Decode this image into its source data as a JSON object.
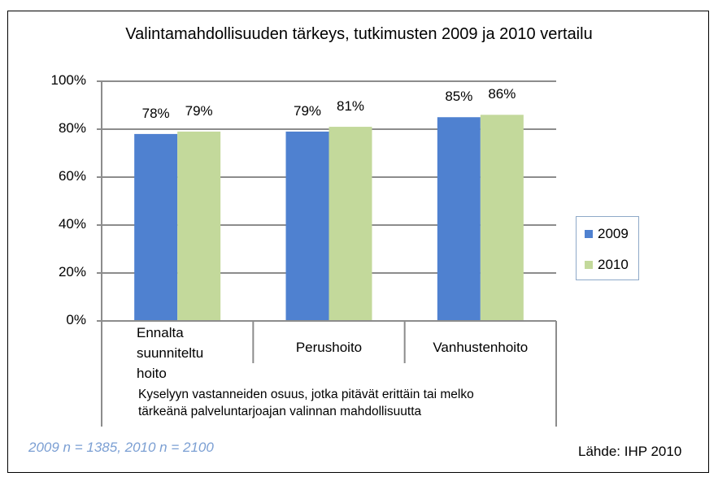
{
  "chart_data": {
    "type": "bar",
    "title": "Valintamahdollisuuden tärkeys, tutkimusten 2009 ja 2010 vertailu",
    "categories": [
      "Ennalta suunniteltu hoito",
      "Perushoito",
      "Vanhustenhoito"
    ],
    "category_lines": [
      [
        "Ennalta",
        "suunniteltu",
        "hoito"
      ],
      [
        "Perushoito"
      ],
      [
        "Vanhustenhoito"
      ]
    ],
    "series": [
      {
        "name": "2009",
        "values": [
          78,
          79,
          85
        ],
        "labels": [
          "78%",
          "79%",
          "85%"
        ],
        "color": "#4f81d0"
      },
      {
        "name": "2010",
        "values": [
          79,
          81,
          86
        ],
        "labels": [
          "79%",
          "81%",
          "86%"
        ],
        "color": "#c3d99b"
      }
    ],
    "ylim": [
      0,
      100
    ],
    "yticks": [
      "0%",
      "20%",
      "40%",
      "60%",
      "80%",
      "100%"
    ],
    "grid": true,
    "legend_position": "right",
    "xlabel": "Kyselyyn vastanneiden osuus, jotka pitävät erittäin tai melko tärkeänä palveluntarjoajan valinnan mahdollisuutta",
    "xlabel_lines": [
      "Kyselyyn vastanneiden osuus, jotka pitävät erittäin tai melko",
      "tärkeänä palveluntarjoajan valinnan mahdollisuutta"
    ]
  },
  "footer": {
    "sample_sizes": "2009 n = 1385, 2010 n = 2100",
    "source": "Lähde: IHP 2010"
  }
}
